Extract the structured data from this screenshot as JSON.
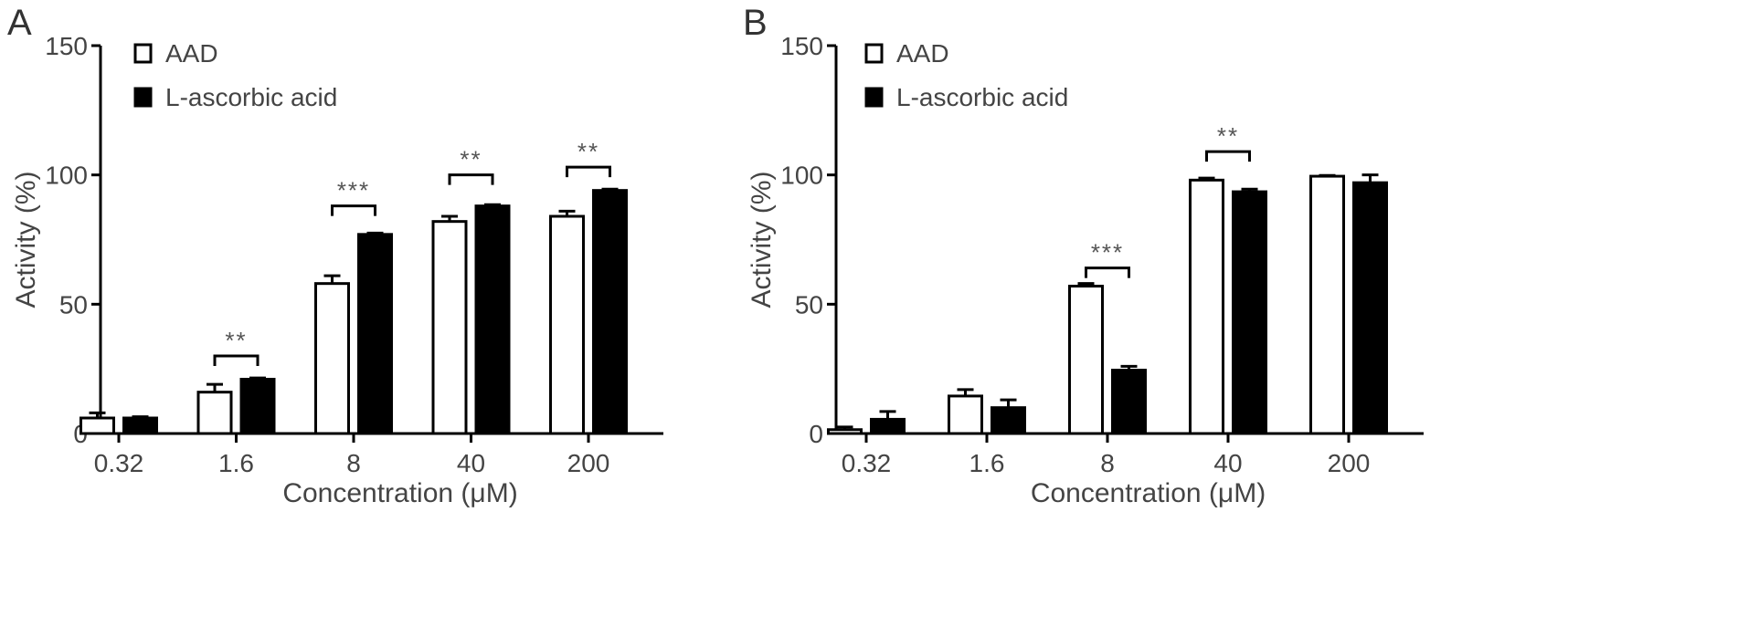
{
  "chart_data": [
    {
      "type": "bar",
      "panel_label": "A",
      "categories": [
        "0.32",
        "1.6",
        "8",
        "40",
        "200"
      ],
      "series": [
        {
          "name": "AAD",
          "values": [
            6,
            16,
            58,
            82,
            84
          ],
          "errors": [
            2,
            3,
            3,
            2,
            2
          ],
          "fill": "#ffffff"
        },
        {
          "name": "L-ascorbic acid",
          "values": [
            6,
            21,
            77,
            88,
            94
          ],
          "errors": [
            0.5,
            0.5,
            0.5,
            0.5,
            0.5
          ],
          "fill": "#000000"
        }
      ],
      "xlabel": "Concentration (μM)",
      "ylabel": "Activity (%)",
      "ylim": [
        0,
        150
      ],
      "yticks": [
        "0",
        "50",
        "100",
        "150"
      ],
      "grid": false,
      "legend_position": "top-left",
      "significance": [
        {
          "category_index": 1,
          "label": "**",
          "y": 30
        },
        {
          "category_index": 2,
          "label": "***",
          "y": 88
        },
        {
          "category_index": 3,
          "label": "**",
          "y": 100
        },
        {
          "category_index": 4,
          "label": "**",
          "y": 103
        }
      ]
    },
    {
      "type": "bar",
      "panel_label": "B",
      "categories": [
        "0.32",
        "1.6",
        "8",
        "40",
        "200"
      ],
      "series": [
        {
          "name": "AAD",
          "values": [
            1.5,
            14.5,
            57,
            98,
            99.5
          ],
          "errors": [
            1,
            2.5,
            1,
            0.8,
            0.3
          ],
          "fill": "#ffffff"
        },
        {
          "name": "L-ascorbic acid",
          "values": [
            5.5,
            10,
            24.5,
            93.5,
            97
          ],
          "errors": [
            3,
            3,
            1.5,
            1,
            3
          ],
          "fill": "#000000"
        }
      ],
      "xlabel": "Concentration (μM)",
      "ylabel": "Activity (%)",
      "ylim": [
        0,
        150
      ],
      "yticks": [
        "0",
        "50",
        "100",
        "150"
      ],
      "grid": false,
      "legend_position": "top-left",
      "significance": [
        {
          "category_index": 2,
          "label": "***",
          "y": 64
        },
        {
          "category_index": 3,
          "label": "**",
          "y": 109
        }
      ]
    }
  ]
}
